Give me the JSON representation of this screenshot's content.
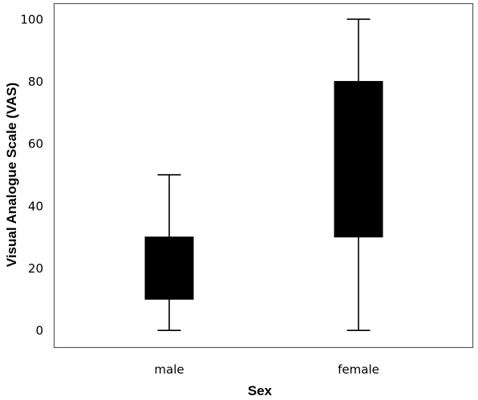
{
  "chart_data": {
    "type": "boxplot",
    "xlabel": "Sex",
    "ylabel": "Visual Analogue Scale (VAS)",
    "categories": [
      "male",
      "female"
    ],
    "boxes": [
      {
        "category": "male",
        "min": 0,
        "q1": 10,
        "q3": 30,
        "max": 50
      },
      {
        "category": "female",
        "min": 0,
        "q1": 30,
        "q3": 80,
        "max": 100
      }
    ],
    "yticks": [
      0,
      20,
      40,
      60,
      80,
      100
    ],
    "ylim": [
      -5.5,
      105
    ],
    "grid": false,
    "legend": "none",
    "colors": {
      "box": "#000000",
      "whisker": "#000000",
      "frame": "#5a5a5a",
      "background": "#ffffff"
    }
  }
}
